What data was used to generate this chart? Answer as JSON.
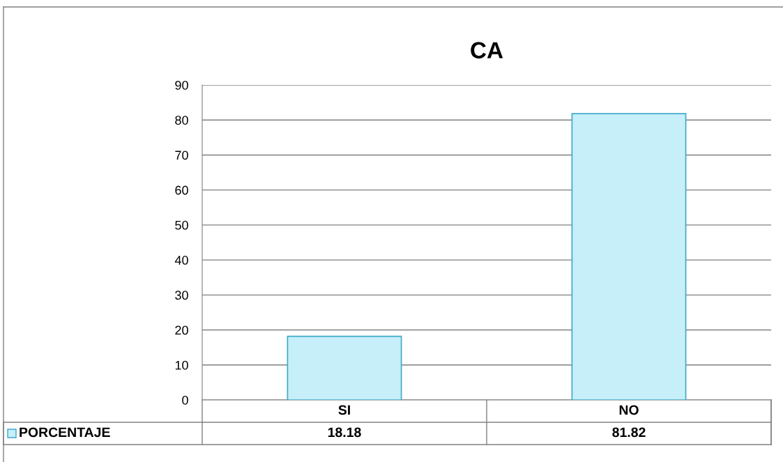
{
  "chart_data": {
    "type": "bar",
    "title": "CA",
    "categories": [
      "SI",
      "NO"
    ],
    "series": [
      {
        "name": "PORCENTAJE",
        "color": "#c6eff9",
        "values": [
          18.18,
          81.82
        ]
      }
    ],
    "ylim": [
      0,
      90
    ],
    "yticks": [
      0,
      10,
      20,
      30,
      40,
      50,
      60,
      70,
      80,
      90
    ],
    "grid": "y",
    "data_labels": true,
    "legend": "bottom"
  }
}
